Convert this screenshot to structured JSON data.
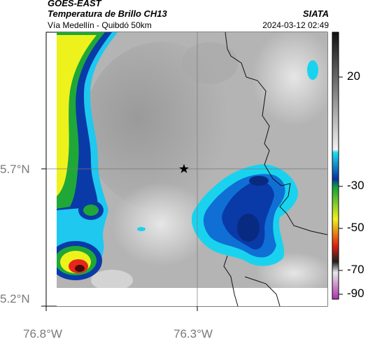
{
  "header": {
    "satellite": "GOES-EAST",
    "product": "Temperatura de Brillo CH13",
    "route": "Vía Medellín - Quibdó 50km",
    "org": "SIATA",
    "timestamp": "2024-03-12 02:49"
  },
  "map": {
    "lat_labels": [
      "5.7°N",
      "5.2°N"
    ],
    "lon_labels": [
      "76.8°W",
      "76.3°W"
    ],
    "marker": "star-marker"
  },
  "colorbar": {
    "tick_labels": [
      "20",
      "-30",
      "-50",
      "-70",
      "-90"
    ],
    "colors": {
      "warm_gray": "#f0f0f0",
      "cold_cyan": "#19d3ee",
      "cold_blue": "#0a3aa8",
      "green": "#22b83a",
      "yellow": "#eef21c",
      "red": "#d81010",
      "magenta": "#c040c0"
    }
  }
}
